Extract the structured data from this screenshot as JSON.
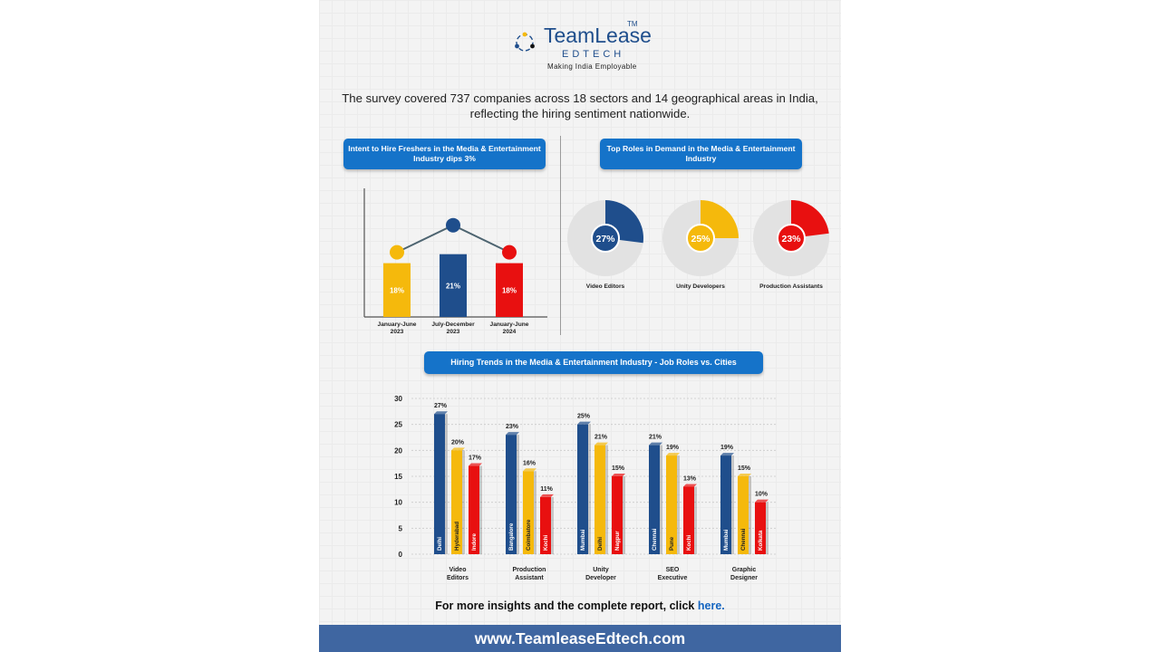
{
  "logo": {
    "brand": "TeamLease",
    "tm": "TM",
    "sub": "EDTECH",
    "tagline": "Making India Employable"
  },
  "intro": "The survey covered 737 companies across 18 sectors and 14 geographical areas in India, reflecting the hiring sentiment nationwide.",
  "panel_left": {
    "title": "Intent to Hire Freshers in the Media & Entertainment Industry dips 3%"
  },
  "panel_right": {
    "title": "Top Roles in Demand in the Media & Entertainment Industry"
  },
  "panel_bottom": {
    "title": "Hiring Trends in the Media & Entertainment Industry - Job Roles vs. Cities"
  },
  "cta": {
    "text": "For more insights and the complete report, click ",
    "link": "here."
  },
  "footer": {
    "url": "www.TeamleaseEdtech.com"
  },
  "colors": {
    "blue": "#1f4e8c",
    "yellow": "#f5b90c",
    "red": "#e81010",
    "pill": "#1573c9",
    "footer": "#3f66a1"
  },
  "chart_data": [
    {
      "type": "bar",
      "categories": [
        "January-June 2023",
        "July-December 2023",
        "January-June 2024"
      ],
      "values": [
        18,
        21,
        18
      ],
      "labels": [
        "18%",
        "21%",
        "18%"
      ],
      "colors": [
        "#f5b90c",
        "#1f4e8c",
        "#e81010"
      ]
    },
    {
      "type": "pie",
      "items": [
        {
          "label": "Video Editors",
          "value": 27,
          "text": "27%",
          "color": "#1f4e8c"
        },
        {
          "label": "Unity Developers",
          "value": 25,
          "text": "25%",
          "color": "#f5b90c"
        },
        {
          "label": "Production Assistants",
          "value": 23,
          "text": "23%",
          "color": "#e81010"
        }
      ]
    },
    {
      "type": "bar",
      "ylim": [
        0,
        30
      ],
      "yticks": [
        0,
        5,
        10,
        15,
        20,
        25,
        30
      ],
      "groups": [
        {
          "category": "Video Editors",
          "bars": [
            {
              "city": "Delhi",
              "value": 27,
              "label": "27%"
            },
            {
              "city": "Hyderabad",
              "value": 20,
              "label": "20%"
            },
            {
              "city": "Indore",
              "value": 17,
              "label": "17%"
            }
          ]
        },
        {
          "category": "Production Assistant",
          "bars": [
            {
              "city": "Bangalore",
              "value": 23,
              "label": "23%"
            },
            {
              "city": "Coimbatore",
              "value": 16,
              "label": "16%"
            },
            {
              "city": "Kochi",
              "value": 11,
              "label": "11%"
            }
          ]
        },
        {
          "category": "Unity Developer",
          "bars": [
            {
              "city": "Mumbai",
              "value": 25,
              "label": "25%"
            },
            {
              "city": "Delhi",
              "value": 21,
              "label": "21%"
            },
            {
              "city": "Nagpur",
              "value": 15,
              "label": "15%"
            }
          ]
        },
        {
          "category": "SEO Executive",
          "bars": [
            {
              "city": "Chennai",
              "value": 21,
              "label": "21%"
            },
            {
              "city": "Pune",
              "value": 19,
              "label": "19%"
            },
            {
              "city": "Kochi",
              "value": 13,
              "label": "13%"
            }
          ]
        },
        {
          "category": "Graphic Designer",
          "bars": [
            {
              "city": "Mumbai",
              "value": 19,
              "label": "19%"
            },
            {
              "city": "Chennai",
              "value": 15,
              "label": "15%"
            },
            {
              "city": "Kolkata",
              "value": 10,
              "label": "10%"
            }
          ]
        }
      ],
      "series_colors": [
        "#1f4e8c",
        "#f5b90c",
        "#e81010"
      ]
    }
  ]
}
